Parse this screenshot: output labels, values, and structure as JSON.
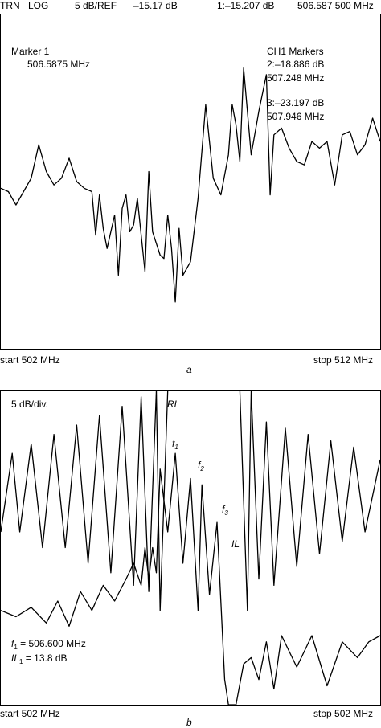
{
  "header": {
    "mode": "TRN",
    "scale_type": "LOG",
    "ref": "5 dB/REF",
    "ref_value": "–15.17 dB",
    "marker_readout": "1:–15.207 dB",
    "marker_freq": "506.587 500 MHz"
  },
  "chart_data": [
    {
      "type": "line",
      "panel_label": "a",
      "x_start_label": "start 502 MHz",
      "x_stop_label": "stop 512 MHz",
      "marker1": {
        "title": "Marker 1",
        "freq": "506.5875 MHz"
      },
      "ch1_markers": {
        "title": "CH1 Markers",
        "m2_value": "2:–18.886 dB",
        "m2_freq": "507.248 MHz",
        "m3_value": "3:–23.197 dB",
        "m3_freq": "507.946 MHz"
      },
      "series": [
        {
          "x": [
            0,
            0.02,
            0.04,
            0.06,
            0.08,
            0.1,
            0.12,
            0.14,
            0.16,
            0.18,
            0.2,
            0.22,
            0.24,
            0.25,
            0.26,
            0.27,
            0.28,
            0.3,
            0.31,
            0.32,
            0.33,
            0.34,
            0.35,
            0.36,
            0.38,
            0.39,
            0.4,
            0.42,
            0.43,
            0.44,
            0.45,
            0.46,
            0.47,
            0.48,
            0.5,
            0.52,
            0.54,
            0.56,
            0.58,
            0.6,
            0.61,
            0.62,
            0.63,
            0.64,
            0.66,
            0.68,
            0.7,
            0.71,
            0.72,
            0.74,
            0.76,
            0.78,
            0.8,
            0.82,
            0.84,
            0.86,
            0.88,
            0.9,
            0.92,
            0.94,
            0.96,
            0.98,
            1.0
          ],
          "values": [
            0.48,
            0.47,
            0.43,
            0.47,
            0.51,
            0.61,
            0.53,
            0.49,
            0.51,
            0.57,
            0.5,
            0.48,
            0.47,
            0.34,
            0.46,
            0.36,
            0.3,
            0.4,
            0.22,
            0.42,
            0.46,
            0.35,
            0.37,
            0.45,
            0.23,
            0.53,
            0.35,
            0.28,
            0.27,
            0.4,
            0.3,
            0.14,
            0.36,
            0.22,
            0.26,
            0.45,
            0.73,
            0.51,
            0.46,
            0.58,
            0.73,
            0.67,
            0.56,
            0.84,
            0.58,
            0.71,
            0.82,
            0.46,
            0.64,
            0.66,
            0.6,
            0.56,
            0.55,
            0.62,
            0.6,
            0.62,
            0.49,
            0.64,
            0.65,
            0.58,
            0.61,
            0.69,
            0.62
          ]
        }
      ]
    },
    {
      "type": "line",
      "panel_label": "b",
      "scale_label": "5 dB/div.",
      "x_start_label": "start 502 MHz",
      "x_stop_label": "stop 502 MHz",
      "annotations": {
        "rl": "RL",
        "il": "IL",
        "f1": "f",
        "f1_sub": "1",
        "f2": "f",
        "f2_sub": "2",
        "f3": "f",
        "f3_sub": "3",
        "f1_value_letter": "f",
        "f1_value_sub": "1",
        "f1_value_text": " = 506.600 MHz",
        "il1_letter": "IL",
        "il1_sub": "1",
        "il1_text": " = 13.8 dB"
      },
      "series": [
        {
          "name": "RL",
          "x": [
            0,
            0.03,
            0.05,
            0.08,
            0.11,
            0.14,
            0.17,
            0.2,
            0.23,
            0.26,
            0.29,
            0.32,
            0.35,
            0.37,
            0.39,
            0.41,
            0.42,
            0.44,
            0.63,
            0.65,
            0.66,
            0.68,
            0.7,
            0.72,
            0.75,
            0.78,
            0.81,
            0.84,
            0.87,
            0.9,
            0.93,
            0.96,
            1.0
          ],
          "values": [
            0.55,
            0.8,
            0.55,
            0.83,
            0.5,
            0.86,
            0.5,
            0.89,
            0.45,
            0.92,
            0.42,
            0.95,
            0.38,
            0.98,
            0.36,
            1.0,
            0.3,
            1.0,
            1.0,
            0.3,
            1.0,
            0.4,
            0.9,
            0.38,
            0.88,
            0.44,
            0.86,
            0.48,
            0.84,
            0.52,
            0.82,
            0.55,
            0.78
          ]
        },
        {
          "name": "IL",
          "x": [
            0,
            0.04,
            0.08,
            0.12,
            0.15,
            0.18,
            0.21,
            0.24,
            0.27,
            0.3,
            0.33,
            0.35,
            0.37,
            0.38,
            0.39,
            0.4,
            0.41,
            0.42,
            0.44,
            0.46,
            0.48,
            0.5,
            0.52,
            0.53,
            0.55,
            0.57,
            0.59,
            0.6,
            0.62,
            0.64,
            0.66,
            0.68,
            0.7,
            0.72,
            0.74,
            0.78,
            0.82,
            0.86,
            0.9,
            0.94,
            0.97,
            1.0
          ],
          "values": [
            0.3,
            0.28,
            0.31,
            0.26,
            0.33,
            0.25,
            0.36,
            0.3,
            0.38,
            0.33,
            0.4,
            0.45,
            0.38,
            0.5,
            0.4,
            0.5,
            0.42,
            0.75,
            0.55,
            0.8,
            0.45,
            0.72,
            0.3,
            0.7,
            0.35,
            0.58,
            0.08,
            0.0,
            0.0,
            0.13,
            0.15,
            0.08,
            0.2,
            0.05,
            0.22,
            0.12,
            0.22,
            0.06,
            0.2,
            0.15,
            0.2,
            0.22
          ]
        }
      ]
    }
  ]
}
